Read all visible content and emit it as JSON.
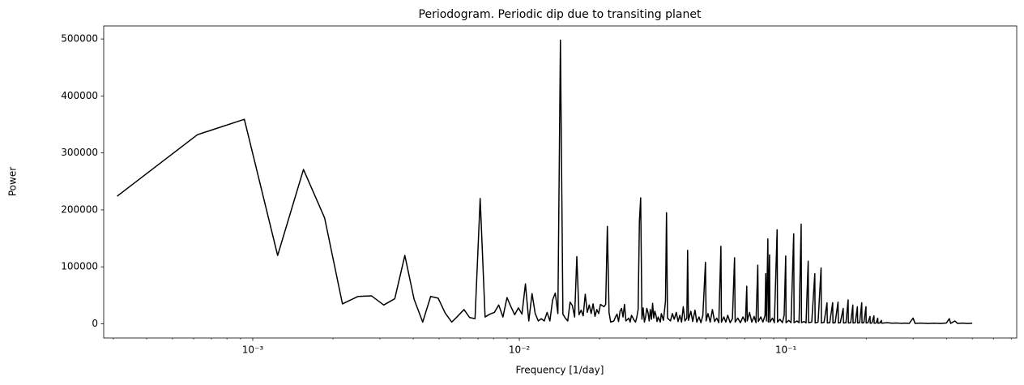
{
  "chart_data": {
    "type": "line",
    "title": "Periodogram. Periodic dip due to transiting planet",
    "xlabel": "Frequency [1/day]",
    "ylabel": "Power",
    "xscale": "log",
    "color": "#000000",
    "xlim": [
      0.000276,
      0.734
    ],
    "ylim": [
      -24900,
      522900
    ],
    "yticks": [
      0,
      100000,
      200000,
      300000,
      400000,
      500000
    ],
    "xticks": [
      {
        "value": 0.001,
        "label": "10⁻³"
      },
      {
        "value": 0.01,
        "label": "10⁻²"
      },
      {
        "value": 0.1,
        "label": "10⁻¹"
      }
    ],
    "xminorticks": [
      0.0003,
      0.0004,
      0.0005,
      0.0006,
      0.0007,
      0.0008,
      0.0009,
      0.002,
      0.003,
      0.004,
      0.005,
      0.006,
      0.007,
      0.008,
      0.009,
      0.02,
      0.03,
      0.04,
      0.05,
      0.06,
      0.07,
      0.08,
      0.09,
      0.2,
      0.3,
      0.4,
      0.5,
      0.6,
      0.7
    ],
    "x": [
      0.00031,
      0.00062,
      0.00093,
      0.00124,
      0.00155,
      0.00186,
      0.00217,
      0.00248,
      0.00279,
      0.0031,
      0.00341,
      0.00372,
      0.00403,
      0.00434,
      0.00465,
      0.00496,
      0.00527,
      0.00558,
      0.00589,
      0.0062,
      0.00651,
      0.00682,
      0.00713,
      0.00744,
      0.00775,
      0.00806,
      0.00837,
      0.00868,
      0.00899,
      0.0093,
      0.00961,
      0.00992,
      0.01023,
      0.01054,
      0.01085,
      0.01116,
      0.01147,
      0.01178,
      0.01209,
      0.0124,
      0.01271,
      0.01302,
      0.01333,
      0.01364,
      0.01395,
      0.01426,
      0.01457,
      0.01488,
      0.01519,
      0.0155,
      0.01581,
      0.01612,
      0.01643,
      0.01674,
      0.01705,
      0.01736,
      0.01767,
      0.01798,
      0.01829,
      0.0186,
      0.01891,
      0.01922,
      0.01953,
      0.01984,
      0.02015,
      0.02046,
      0.02077,
      0.02108,
      0.02139,
      0.0217,
      0.02201,
      0.02263,
      0.02294,
      0.02325,
      0.02356,
      0.02387,
      0.02418,
      0.02449,
      0.0248,
      0.02511,
      0.02573,
      0.02604,
      0.02635,
      0.02697,
      0.02728,
      0.02759,
      0.0279,
      0.02821,
      0.02852,
      0.02883,
      0.02914,
      0.02945,
      0.02976,
      0.03007,
      0.03038,
      0.03069,
      0.031,
      0.03131,
      0.03162,
      0.03193,
      0.03224,
      0.03255,
      0.03286,
      0.03317,
      0.03379,
      0.0341,
      0.03472,
      0.03534,
      0.03565,
      0.03596,
      0.0369,
      0.0375,
      0.0381,
      0.0388,
      0.0394,
      0.04,
      0.0406,
      0.0412,
      0.0418,
      0.0425,
      0.04278,
      0.0431,
      0.044,
      0.0447,
      0.0456,
      0.0463,
      0.0472,
      0.048,
      0.0488,
      0.04991,
      0.0502,
      0.051,
      0.052,
      0.053,
      0.054,
      0.055,
      0.056,
      0.05704,
      0.0573,
      0.0585,
      0.0595,
      0.0605,
      0.0618,
      0.063,
      0.06417,
      0.0645,
      0.066,
      0.0675,
      0.069,
      0.0705,
      0.0713,
      0.0716,
      0.073,
      0.0745,
      0.076,
      0.0772,
      0.07843,
      0.0788,
      0.0805,
      0.082,
      0.0835,
      0.084,
      0.0845,
      0.08556,
      0.0859,
      0.0868,
      0.0871,
      0.089,
      0.0905,
      0.09269,
      0.093,
      0.095,
      0.097,
      0.0985,
      0.09982,
      0.1001,
      0.1025,
      0.1045,
      0.10695,
      0.1073,
      0.11,
      0.112,
      0.11408,
      0.1144,
      0.117,
      0.119,
      0.12121,
      0.1216,
      0.125,
      0.12834,
      0.1287,
      0.132,
      0.13547,
      0.1358,
      0.139,
      0.1426,
      0.143,
      0.146,
      0.14973,
      0.1501,
      0.153,
      0.15686,
      0.1572,
      0.16,
      0.16399,
      0.1644,
      0.168,
      0.17112,
      0.1715,
      0.175,
      0.17825,
      0.1786,
      0.182,
      0.18538,
      0.1858,
      0.189,
      0.19251,
      0.1929,
      0.196,
      0.19964,
      0.2,
      0.203,
      0.20677,
      0.2071,
      0.21,
      0.2139,
      0.2143,
      0.218,
      0.22103,
      0.2214,
      0.225,
      0.22816,
      0.2285,
      0.24,
      0.25,
      0.26,
      0.27,
      0.28,
      0.29,
      0.3,
      0.305,
      0.32,
      0.34,
      0.36,
      0.38,
      0.4,
      0.41,
      0.415,
      0.43,
      0.44,
      0.46,
      0.48,
      0.5
    ],
    "values": [
      224000,
      332000,
      359000,
      120000,
      271000,
      186000,
      35000,
      48000,
      49000,
      33000,
      44000,
      120000,
      43000,
      3000,
      48000,
      45000,
      19000,
      3000,
      14000,
      25000,
      11000,
      9000,
      220000,
      12000,
      17000,
      20000,
      33000,
      12000,
      46000,
      30000,
      16000,
      28000,
      17000,
      70000,
      5000,
      53000,
      18000,
      5000,
      9000,
      5000,
      20000,
      5000,
      42000,
      54000,
      18000,
      498000,
      17000,
      10000,
      5000,
      38000,
      32000,
      12000,
      118000,
      16000,
      24000,
      14000,
      52000,
      20000,
      33000,
      18000,
      35000,
      13000,
      25000,
      18000,
      34000,
      32000,
      30000,
      34000,
      171000,
      20000,
      3000,
      5000,
      12000,
      17000,
      4000,
      22000,
      27000,
      12000,
      34000,
      5000,
      10000,
      3000,
      15000,
      6000,
      3000,
      12000,
      25000,
      180000,
      221000,
      8000,
      28000,
      3000,
      12000,
      27000,
      20000,
      5000,
      25000,
      8000,
      36000,
      10000,
      22000,
      15000,
      4000,
      12000,
      3000,
      18000,
      6000,
      40000,
      195000,
      10000,
      5000,
      18000,
      8000,
      20000,
      4000,
      15000,
      3000,
      30000,
      5000,
      10000,
      129000,
      6000,
      22000,
      4000,
      24000,
      3000,
      12000,
      2000,
      15000,
      108000,
      5000,
      18000,
      3000,
      25000,
      4000,
      10000,
      2000,
      136000,
      3000,
      12000,
      3000,
      15000,
      2000,
      9000,
      116000,
      3000,
      10000,
      2000,
      12000,
      3000,
      66000,
      5000,
      20000,
      3000,
      13000,
      2000,
      103000,
      4000,
      12000,
      3000,
      15000,
      88000,
      5000,
      149000,
      3000,
      121000,
      3000,
      10000,
      2000,
      165000,
      3000,
      8000,
      2000,
      15000,
      119000,
      2000,
      6000,
      2000,
      158000,
      2000,
      5000,
      2000,
      175000,
      2000,
      4000,
      1500,
      110000,
      2000,
      3000,
      88000,
      1500,
      3000,
      98000,
      1500,
      2500,
      37000,
      1500,
      2000,
      37000,
      1500,
      2000,
      38000,
      1500,
      2000,
      27000,
      1500,
      2000,
      42000,
      1500,
      2000,
      33000,
      1500,
      2000,
      30000,
      1500,
      2000,
      37000,
      1500,
      2000,
      30000,
      1500,
      2000,
      13000,
      1000,
      1500,
      14000,
      1000,
      1500,
      10000,
      1000,
      1500,
      6000,
      1000,
      2000,
      1000,
      1500,
      800,
      1200,
      700,
      10000,
      800,
      1200,
      600,
      1000,
      600,
      1500,
      9000,
      700,
      5000,
      800,
      1200,
      600,
      1000
    ]
  }
}
